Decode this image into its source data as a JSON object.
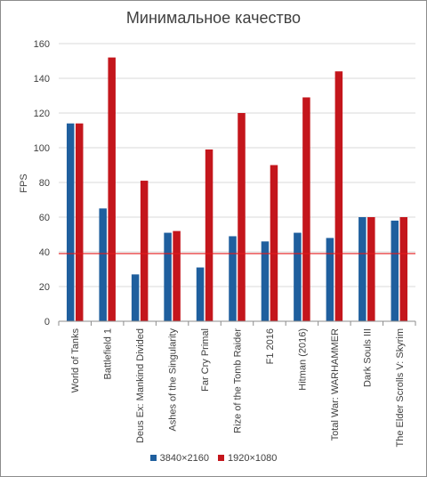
{
  "chart_data": {
    "type": "bar",
    "title": "Минимальное качество",
    "xlabel": "",
    "ylabel": "FPS",
    "ylim": [
      0,
      160
    ],
    "yticks": [
      0,
      20,
      40,
      60,
      80,
      100,
      120,
      140,
      160
    ],
    "grid": true,
    "legend_position": "bottom",
    "reference_line": {
      "value": 39,
      "color": "#e31a1c"
    },
    "categories": [
      "World of Tanks",
      "Battlefield 1",
      "Deus Ex: Mankind Divided",
      "Ashes of the Singularity",
      "Far Cry Primal",
      "Rize of the Tomb Raider",
      "F1 2016",
      "Hitman (2016)",
      "Total War: WARHAMMER",
      "Dark Souls III",
      "The Elder Scrolls V: Skyrim"
    ],
    "series": [
      {
        "name": "3840×2160",
        "color": "#1f5f9e",
        "values": [
          114,
          65,
          27,
          51,
          31,
          49,
          46,
          51,
          48,
          60,
          58
        ]
      },
      {
        "name": "1920×1080",
        "color": "#c4161c",
        "values": [
          114,
          152,
          81,
          52,
          99,
          120,
          90,
          129,
          144,
          60,
          60
        ]
      }
    ]
  }
}
